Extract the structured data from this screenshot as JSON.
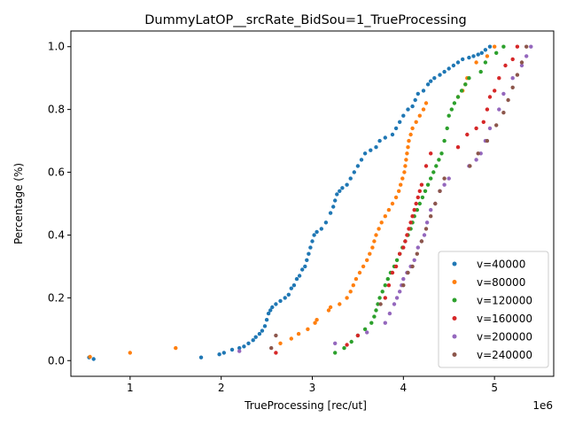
{
  "chart_data": {
    "type": "scatter",
    "title": "DummyLatOP__srcRate_BidSou=1_TrueProcessing",
    "xlabel": "TrueProcessing [rec/ut]",
    "ylabel": "Percentage (%)",
    "x_scale_label": "1e6",
    "xlim": [
      0.35,
      5.65
    ],
    "ylim": [
      -0.05,
      1.05
    ],
    "x_tick_values": [
      1,
      2,
      3,
      4,
      5
    ],
    "x_tick_labels": [
      "1",
      "2",
      "3",
      "4",
      "5"
    ],
    "y_tick_values": [
      0.0,
      0.2,
      0.4,
      0.6,
      0.8,
      1.0
    ],
    "y_tick_labels": [
      "0.0",
      "0.2",
      "0.4",
      "0.6",
      "0.8",
      "1.0"
    ],
    "grid": false,
    "legend_position": "lower-right",
    "series": [
      {
        "name": "v=40000",
        "color": "#1f77b4",
        "points": [
          [
            0.55,
            0.01
          ],
          [
            0.6,
            0.005
          ],
          [
            1.78,
            0.01
          ],
          [
            1.98,
            0.02
          ],
          [
            2.03,
            0.025
          ],
          [
            2.12,
            0.035
          ],
          [
            2.2,
            0.04
          ],
          [
            2.25,
            0.045
          ],
          [
            2.3,
            0.055
          ],
          [
            2.35,
            0.065
          ],
          [
            2.38,
            0.075
          ],
          [
            2.42,
            0.085
          ],
          [
            2.45,
            0.095
          ],
          [
            2.48,
            0.11
          ],
          [
            2.5,
            0.13
          ],
          [
            2.52,
            0.15
          ],
          [
            2.54,
            0.16
          ],
          [
            2.56,
            0.17
          ],
          [
            2.6,
            0.18
          ],
          [
            2.65,
            0.19
          ],
          [
            2.7,
            0.2
          ],
          [
            2.74,
            0.21
          ],
          [
            2.77,
            0.23
          ],
          [
            2.8,
            0.24
          ],
          [
            2.83,
            0.26
          ],
          [
            2.86,
            0.27
          ],
          [
            2.89,
            0.29
          ],
          [
            2.92,
            0.3
          ],
          [
            2.94,
            0.32
          ],
          [
            2.96,
            0.34
          ],
          [
            2.98,
            0.36
          ],
          [
            3.0,
            0.38
          ],
          [
            3.02,
            0.4
          ],
          [
            3.05,
            0.41
          ],
          [
            3.1,
            0.42
          ],
          [
            3.15,
            0.44
          ],
          [
            3.2,
            0.47
          ],
          [
            3.23,
            0.49
          ],
          [
            3.25,
            0.51
          ],
          [
            3.27,
            0.53
          ],
          [
            3.3,
            0.54
          ],
          [
            3.33,
            0.55
          ],
          [
            3.38,
            0.56
          ],
          [
            3.42,
            0.58
          ],
          [
            3.46,
            0.6
          ],
          [
            3.5,
            0.62
          ],
          [
            3.54,
            0.64
          ],
          [
            3.58,
            0.66
          ],
          [
            3.64,
            0.67
          ],
          [
            3.7,
            0.68
          ],
          [
            3.74,
            0.7
          ],
          [
            3.8,
            0.71
          ],
          [
            3.88,
            0.72
          ],
          [
            3.92,
            0.74
          ],
          [
            3.96,
            0.76
          ],
          [
            4.0,
            0.78
          ],
          [
            4.05,
            0.8
          ],
          [
            4.1,
            0.81
          ],
          [
            4.13,
            0.83
          ],
          [
            4.16,
            0.85
          ],
          [
            4.22,
            0.86
          ],
          [
            4.27,
            0.88
          ],
          [
            4.3,
            0.89
          ],
          [
            4.34,
            0.9
          ],
          [
            4.4,
            0.91
          ],
          [
            4.45,
            0.92
          ],
          [
            4.5,
            0.93
          ],
          [
            4.55,
            0.94
          ],
          [
            4.6,
            0.95
          ],
          [
            4.65,
            0.96
          ],
          [
            4.72,
            0.965
          ],
          [
            4.77,
            0.97
          ],
          [
            4.82,
            0.975
          ],
          [
            4.86,
            0.98
          ],
          [
            4.9,
            0.99
          ],
          [
            4.95,
            1.0
          ]
        ]
      },
      {
        "name": "v=80000",
        "color": "#ff7f0e",
        "points": [
          [
            0.56,
            0.012
          ],
          [
            1.0,
            0.025
          ],
          [
            1.5,
            0.04
          ],
          [
            2.65,
            0.055
          ],
          [
            2.77,
            0.07
          ],
          [
            2.85,
            0.085
          ],
          [
            2.95,
            0.1
          ],
          [
            3.03,
            0.12
          ],
          [
            3.05,
            0.13
          ],
          [
            3.18,
            0.16
          ],
          [
            3.2,
            0.17
          ],
          [
            3.3,
            0.18
          ],
          [
            3.38,
            0.2
          ],
          [
            3.42,
            0.22
          ],
          [
            3.45,
            0.24
          ],
          [
            3.48,
            0.26
          ],
          [
            3.52,
            0.28
          ],
          [
            3.56,
            0.3
          ],
          [
            3.6,
            0.32
          ],
          [
            3.63,
            0.34
          ],
          [
            3.66,
            0.36
          ],
          [
            3.68,
            0.38
          ],
          [
            3.7,
            0.4
          ],
          [
            3.73,
            0.42
          ],
          [
            3.76,
            0.44
          ],
          [
            3.8,
            0.46
          ],
          [
            3.84,
            0.48
          ],
          [
            3.88,
            0.5
          ],
          [
            3.92,
            0.52
          ],
          [
            3.95,
            0.54
          ],
          [
            3.97,
            0.56
          ],
          [
            3.99,
            0.58
          ],
          [
            4.01,
            0.6
          ],
          [
            4.02,
            0.62
          ],
          [
            4.03,
            0.64
          ],
          [
            4.04,
            0.66
          ],
          [
            4.05,
            0.68
          ],
          [
            4.06,
            0.7
          ],
          [
            4.08,
            0.72
          ],
          [
            4.1,
            0.74
          ],
          [
            4.14,
            0.76
          ],
          [
            4.18,
            0.78
          ],
          [
            4.22,
            0.8
          ],
          [
            4.25,
            0.82
          ],
          [
            4.6,
            0.84
          ],
          [
            4.65,
            0.86
          ],
          [
            4.68,
            0.88
          ],
          [
            4.7,
            0.9
          ],
          [
            4.8,
            0.95
          ],
          [
            4.92,
            0.97
          ],
          [
            5.0,
            1.0
          ]
        ]
      },
      {
        "name": "v=120000",
        "color": "#2ca02c",
        "points": [
          [
            3.25,
            0.025
          ],
          [
            3.35,
            0.04
          ],
          [
            3.43,
            0.06
          ],
          [
            3.5,
            0.08
          ],
          [
            3.58,
            0.1
          ],
          [
            3.65,
            0.12
          ],
          [
            3.68,
            0.14
          ],
          [
            3.7,
            0.16
          ],
          [
            3.72,
            0.18
          ],
          [
            3.74,
            0.2
          ],
          [
            3.77,
            0.22
          ],
          [
            3.8,
            0.24
          ],
          [
            3.83,
            0.26
          ],
          [
            3.86,
            0.28
          ],
          [
            3.9,
            0.3
          ],
          [
            3.93,
            0.32
          ],
          [
            3.96,
            0.34
          ],
          [
            3.99,
            0.36
          ],
          [
            4.02,
            0.38
          ],
          [
            4.05,
            0.4
          ],
          [
            4.08,
            0.42
          ],
          [
            4.1,
            0.44
          ],
          [
            4.12,
            0.46
          ],
          [
            4.15,
            0.48
          ],
          [
            4.18,
            0.5
          ],
          [
            4.21,
            0.52
          ],
          [
            4.24,
            0.54
          ],
          [
            4.27,
            0.56
          ],
          [
            4.3,
            0.58
          ],
          [
            4.33,
            0.6
          ],
          [
            4.36,
            0.62
          ],
          [
            4.39,
            0.64
          ],
          [
            4.42,
            0.66
          ],
          [
            4.45,
            0.7
          ],
          [
            4.48,
            0.74
          ],
          [
            4.5,
            0.78
          ],
          [
            4.53,
            0.8
          ],
          [
            4.56,
            0.82
          ],
          [
            4.6,
            0.84
          ],
          [
            4.64,
            0.86
          ],
          [
            4.68,
            0.88
          ],
          [
            4.72,
            0.9
          ],
          [
            4.85,
            0.92
          ],
          [
            4.9,
            0.95
          ],
          [
            5.02,
            0.98
          ],
          [
            5.1,
            1.0
          ]
        ]
      },
      {
        "name": "v=160000",
        "color": "#d62728",
        "points": [
          [
            2.6,
            0.025
          ],
          [
            3.38,
            0.05
          ],
          [
            3.5,
            0.08
          ],
          [
            3.8,
            0.2
          ],
          [
            3.84,
            0.24
          ],
          [
            3.88,
            0.28
          ],
          [
            3.92,
            0.3
          ],
          [
            3.96,
            0.34
          ],
          [
            4.0,
            0.36
          ],
          [
            4.02,
            0.38
          ],
          [
            4.04,
            0.4
          ],
          [
            4.06,
            0.42
          ],
          [
            4.08,
            0.44
          ],
          [
            4.1,
            0.46
          ],
          [
            4.12,
            0.48
          ],
          [
            4.14,
            0.5
          ],
          [
            4.16,
            0.52
          ],
          [
            4.18,
            0.54
          ],
          [
            4.2,
            0.56
          ],
          [
            4.25,
            0.62
          ],
          [
            4.3,
            0.66
          ],
          [
            4.6,
            0.68
          ],
          [
            4.7,
            0.72
          ],
          [
            4.8,
            0.74
          ],
          [
            4.88,
            0.76
          ],
          [
            4.92,
            0.8
          ],
          [
            4.95,
            0.84
          ],
          [
            5.0,
            0.86
          ],
          [
            5.05,
            0.9
          ],
          [
            5.12,
            0.94
          ],
          [
            5.2,
            0.96
          ],
          [
            5.25,
            1.0
          ]
        ]
      },
      {
        "name": "v=200000",
        "color": "#9467bd",
        "points": [
          [
            2.2,
            0.03
          ],
          [
            3.25,
            0.055
          ],
          [
            3.6,
            0.09
          ],
          [
            3.8,
            0.12
          ],
          [
            3.85,
            0.15
          ],
          [
            3.9,
            0.18
          ],
          [
            3.93,
            0.2
          ],
          [
            3.96,
            0.22
          ],
          [
            3.98,
            0.24
          ],
          [
            4.0,
            0.26
          ],
          [
            4.04,
            0.28
          ],
          [
            4.08,
            0.3
          ],
          [
            4.12,
            0.32
          ],
          [
            4.16,
            0.36
          ],
          [
            4.2,
            0.38
          ],
          [
            4.23,
            0.4
          ],
          [
            4.26,
            0.44
          ],
          [
            4.3,
            0.48
          ],
          [
            4.35,
            0.5
          ],
          [
            4.4,
            0.54
          ],
          [
            4.45,
            0.56
          ],
          [
            4.5,
            0.58
          ],
          [
            4.72,
            0.62
          ],
          [
            4.8,
            0.64
          ],
          [
            4.85,
            0.66
          ],
          [
            4.9,
            0.7
          ],
          [
            4.95,
            0.74
          ],
          [
            5.05,
            0.8
          ],
          [
            5.1,
            0.85
          ],
          [
            5.2,
            0.9
          ],
          [
            5.3,
            0.94
          ],
          [
            5.35,
            0.97
          ],
          [
            5.4,
            1.0
          ]
        ]
      },
      {
        "name": "v=240000",
        "color": "#8c564b",
        "points": [
          [
            2.55,
            0.04
          ],
          [
            2.6,
            0.08
          ],
          [
            3.75,
            0.18
          ],
          [
            4.0,
            0.24
          ],
          [
            4.05,
            0.28
          ],
          [
            4.1,
            0.3
          ],
          [
            4.15,
            0.34
          ],
          [
            4.2,
            0.38
          ],
          [
            4.25,
            0.42
          ],
          [
            4.3,
            0.46
          ],
          [
            4.35,
            0.5
          ],
          [
            4.4,
            0.54
          ],
          [
            4.45,
            0.58
          ],
          [
            4.73,
            0.62
          ],
          [
            4.82,
            0.66
          ],
          [
            4.92,
            0.7
          ],
          [
            5.02,
            0.75
          ],
          [
            5.1,
            0.79
          ],
          [
            5.15,
            0.83
          ],
          [
            5.2,
            0.87
          ],
          [
            5.25,
            0.91
          ],
          [
            5.3,
            0.95
          ],
          [
            5.35,
            1.0
          ]
        ]
      }
    ]
  }
}
